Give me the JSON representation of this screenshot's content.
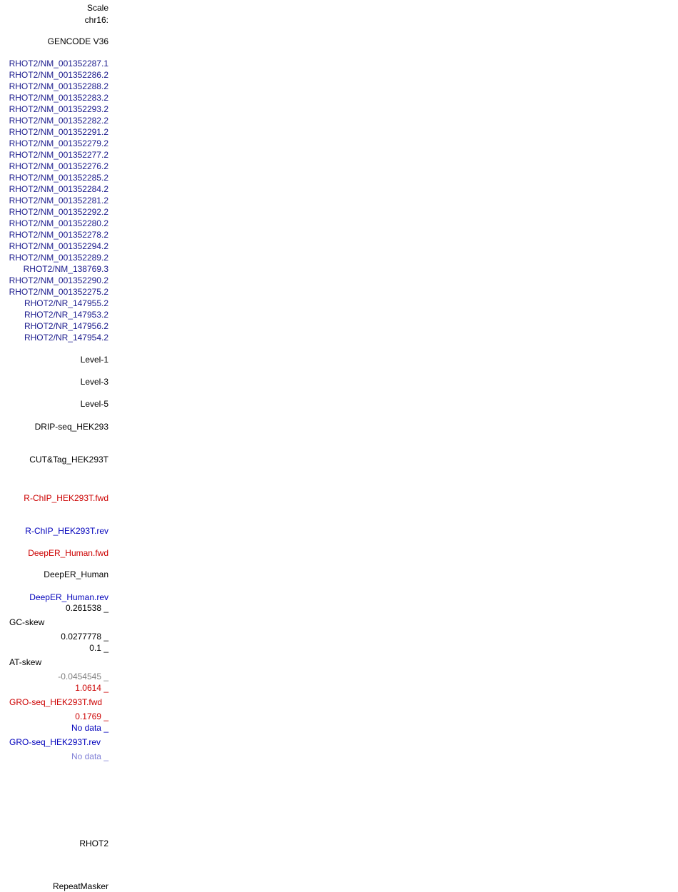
{
  "header": {
    "scale": "Scale",
    "chrom": "chr16:"
  },
  "gencode": {
    "title": "GENCODE V36",
    "transcripts": [
      "RHOT2/NM_001352287.1",
      "RHOT2/NM_001352286.2",
      "RHOT2/NM_001352288.2",
      "RHOT2/NM_001352283.2",
      "RHOT2/NM_001352293.2",
      "RHOT2/NM_001352282.2",
      "RHOT2/NM_001352291.2",
      "RHOT2/NM_001352279.2",
      "RHOT2/NM_001352277.2",
      "RHOT2/NM_001352276.2",
      "RHOT2/NM_001352285.2",
      "RHOT2/NM_001352284.2",
      "RHOT2/NM_001352281.2",
      "RHOT2/NM_001352292.2",
      "RHOT2/NM_001352280.2",
      "RHOT2/NM_001352278.2",
      "RHOT2/NM_001352294.2",
      "RHOT2/NM_001352289.2",
      "RHOT2/NM_138769.3",
      "RHOT2/NM_001352290.2",
      "RHOT2/NM_001352275.2",
      "RHOT2/NR_147955.2",
      "RHOT2/NR_147953.2",
      "RHOT2/NR_147956.2",
      "RHOT2/NR_147954.2"
    ]
  },
  "levels": [
    "Level-1",
    "Level-3",
    "Level-5"
  ],
  "tracks": {
    "drip": "DRIP-seq_HEK293",
    "cuttag": "CUT&Tag_HEK293T",
    "rchip_fwd": "R-ChIP_HEK293T.fwd",
    "rchip_rev": "R-ChIP_HEK293T.rev",
    "deeper_fwd": "DeepER_Human.fwd",
    "deeper": "DeepER_Human",
    "deeper_rev": "DeepER_Human.rev"
  },
  "gc_skew": {
    "max": "0.261538 _",
    "name": "GC-skew",
    "min": "0.0277778 _"
  },
  "at_skew": {
    "max": "0.1 _",
    "name": "AT-skew",
    "min": "-0.0454545 _"
  },
  "gro_fwd": {
    "max": "1.0614 _",
    "name": "GRO-seq_HEK293T.fwd",
    "min": "0.1769 _"
  },
  "gro_rev": {
    "max": "No data _",
    "name": "GRO-seq_HEK293T.rev",
    "min": "No data _"
  },
  "gene": "RHOT2",
  "repeatmasker": "RepeatMasker",
  "colors": {
    "default": "#000000",
    "transcript": "#1a1a8c",
    "forward": "#cc0000",
    "reverse": "#0000bb",
    "muted": "#808080",
    "no_data_light": "#7f7fd6"
  }
}
